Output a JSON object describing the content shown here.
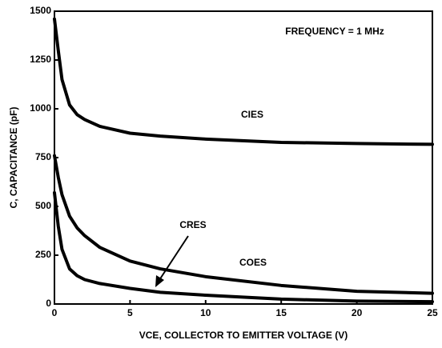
{
  "chart_data": {
    "type": "line",
    "xlabel": "VCE, COLLECTOR TO EMITTER VOLTAGE (V)",
    "ylabel": "C, CAPACITANCE (pF)",
    "annotations": [
      "FREQUENCY = 1 MHz"
    ],
    "x": [
      0,
      0.25,
      0.5,
      1,
      1.5,
      2,
      3,
      5,
      7,
      10,
      15,
      20,
      25
    ],
    "series": [
      {
        "name": "CIES",
        "color": "#000000",
        "values": [
          1460,
          1300,
          1150,
          1020,
          970,
          945,
          910,
          875,
          860,
          845,
          828,
          822,
          818
        ]
      },
      {
        "name": "COES",
        "color": "#000000",
        "values": [
          760,
          650,
          560,
          450,
          390,
          350,
          290,
          220,
          180,
          140,
          95,
          65,
          55
        ]
      },
      {
        "name": "CRES",
        "color": "#000000",
        "values": [
          570,
          400,
          280,
          180,
          145,
          125,
          105,
          80,
          60,
          45,
          25,
          15,
          12
        ]
      }
    ],
    "xlim": [
      0,
      25
    ],
    "xticks": [
      0,
      5,
      10,
      15,
      20,
      25
    ],
    "ylim": [
      0,
      1500
    ],
    "yticks": [
      0,
      250,
      500,
      750,
      1000,
      1250,
      1500
    ],
    "grid": false
  }
}
